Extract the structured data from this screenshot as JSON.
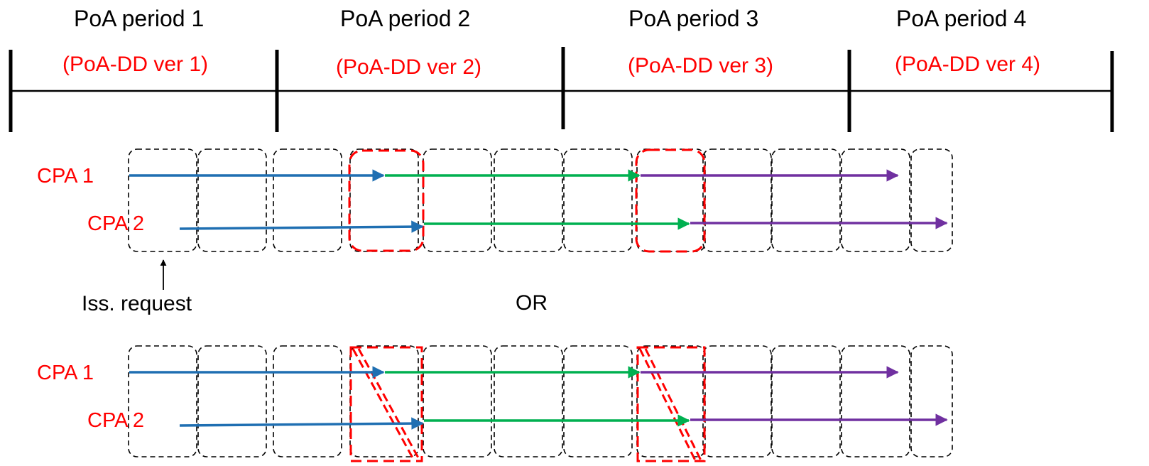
{
  "colors": {
    "text": "#000000",
    "highlight": "#ff0000",
    "blue": "#1f6fb2",
    "green": "#00b050",
    "purple": "#7030a0",
    "box_dash": "#000000",
    "red_dash": "#ff0000"
  },
  "timeline": {
    "periods": [
      {
        "label": "PoA period 1",
        "version": "(PoA-DD ver 1)"
      },
      {
        "label": "PoA period 2",
        "version": "(PoA-DD ver 2)"
      },
      {
        "label": "PoA period 3",
        "version": "(PoA-DD ver 3)"
      },
      {
        "label": "PoA period 4",
        "version": "(PoA-DD ver 4)"
      }
    ]
  },
  "scenario_top": {
    "cpa1_label": "CPA 1",
    "cpa2_label": "CPA 2",
    "issuance_label": "Iss. request"
  },
  "separator": {
    "label": "OR"
  },
  "scenario_bottom": {
    "cpa1_label": "CPA 1",
    "cpa2_label": "CPA 2"
  }
}
